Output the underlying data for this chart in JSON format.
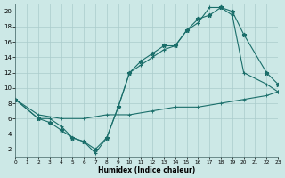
{
  "xlabel": "Humidex (Indice chaleur)",
  "bg_color": "#cce8e6",
  "line_color": "#1a6e6a",
  "grid_color": "#aacccc",
  "xlim": [
    0,
    23
  ],
  "ylim": [
    1,
    21
  ],
  "xtick_vals": [
    0,
    1,
    2,
    3,
    4,
    5,
    6,
    7,
    8,
    9,
    10,
    11,
    12,
    13,
    14,
    15,
    16,
    17,
    18,
    19,
    20,
    21,
    22,
    23
  ],
  "ytick_vals": [
    2,
    4,
    6,
    8,
    10,
    12,
    14,
    16,
    18,
    20
  ],
  "line1_x": [
    0,
    2,
    3,
    4,
    5,
    6,
    7,
    8,
    9,
    10,
    11,
    12,
    13,
    14,
    15,
    16,
    17,
    18,
    19,
    20,
    22,
    23
  ],
  "line1_y": [
    8.5,
    6.0,
    6.0,
    5.0,
    3.5,
    3.0,
    1.5,
    3.5,
    7.5,
    12.0,
    13.0,
    14.0,
    15.0,
    15.5,
    17.5,
    18.5,
    20.5,
    20.5,
    19.5,
    12.0,
    10.5,
    9.5
  ],
  "line2_x": [
    0,
    2,
    3,
    4,
    5,
    6,
    7,
    8,
    9,
    10,
    11,
    12,
    13,
    14,
    15,
    16,
    17,
    18,
    19,
    20,
    22,
    23
  ],
  "line2_y": [
    8.5,
    6.0,
    5.5,
    4.5,
    3.5,
    3.0,
    2.0,
    3.5,
    7.5,
    12.0,
    13.5,
    14.5,
    15.5,
    15.5,
    17.5,
    19.0,
    19.5,
    20.5,
    20.0,
    17.0,
    12.0,
    10.5
  ],
  "line3_x": [
    0,
    2,
    4,
    6,
    8,
    10,
    12,
    14,
    16,
    18,
    20,
    22,
    23
  ],
  "line3_y": [
    8.5,
    6.5,
    6.0,
    6.0,
    6.5,
    6.5,
    7.0,
    7.5,
    7.5,
    8.0,
    8.5,
    9.0,
    9.5
  ]
}
